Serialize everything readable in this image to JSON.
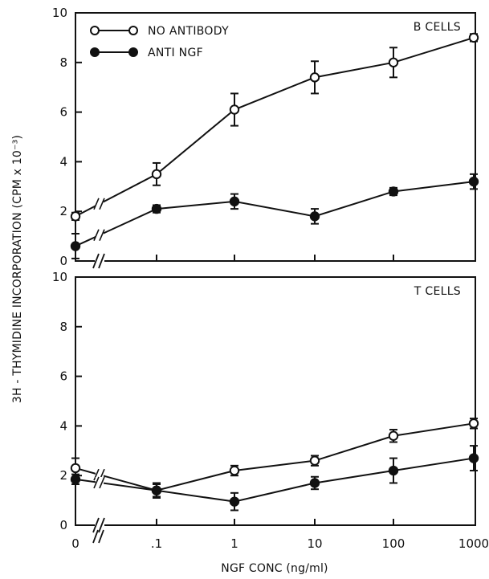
{
  "chart_data": {
    "type": "line",
    "ylabel": "3H - THYMIDINE INCORPORATION (CPM x 10⁻³)",
    "xlabel": "NGF CONC (ng/ml)",
    "x_categories": [
      "0",
      ".1",
      "1",
      "10",
      "100",
      "1000"
    ],
    "x_scale": "log",
    "axis_break": "//",
    "ylim": [
      0,
      10
    ],
    "yticks": [
      "0",
      "2",
      "4",
      "6",
      "8",
      "10"
    ],
    "legend": {
      "placement": "top-left",
      "entries": [
        {
          "label": "NO ANTIBODY",
          "marker": "open-circle"
        },
        {
          "label": "ANTI NGF",
          "marker": "filled-circle"
        }
      ]
    },
    "panels": [
      {
        "label": "B CELLS",
        "series": [
          {
            "name": "NO ANTIBODY",
            "marker": "open-circle",
            "values": [
              1.8,
              3.5,
              6.1,
              7.4,
              8.0,
              9.0
            ],
            "errors": [
              0.15,
              0.45,
              0.65,
              0.65,
              0.6,
              0.15
            ]
          },
          {
            "name": "ANTI NGF",
            "marker": "filled-circle",
            "values": [
              0.6,
              2.1,
              2.4,
              1.8,
              2.8,
              3.2
            ],
            "errors": [
              0.5,
              0.15,
              0.3,
              0.3,
              0.15,
              0.3
            ]
          }
        ]
      },
      {
        "label": "T CELLS",
        "series": [
          {
            "name": "NO ANTIBODY",
            "marker": "open-circle",
            "values": [
              2.3,
              1.4,
              2.2,
              2.6,
              3.6,
              4.1
            ],
            "errors": [
              0.4,
              0.25,
              0.2,
              0.2,
              0.25,
              0.2
            ]
          },
          {
            "name": "ANTI NGF",
            "marker": "filled-circle",
            "values": [
              1.85,
              1.4,
              0.95,
              1.7,
              2.2,
              2.7
            ],
            "errors": [
              0.2,
              0.3,
              0.35,
              0.25,
              0.5,
              0.5
            ]
          }
        ]
      }
    ]
  }
}
